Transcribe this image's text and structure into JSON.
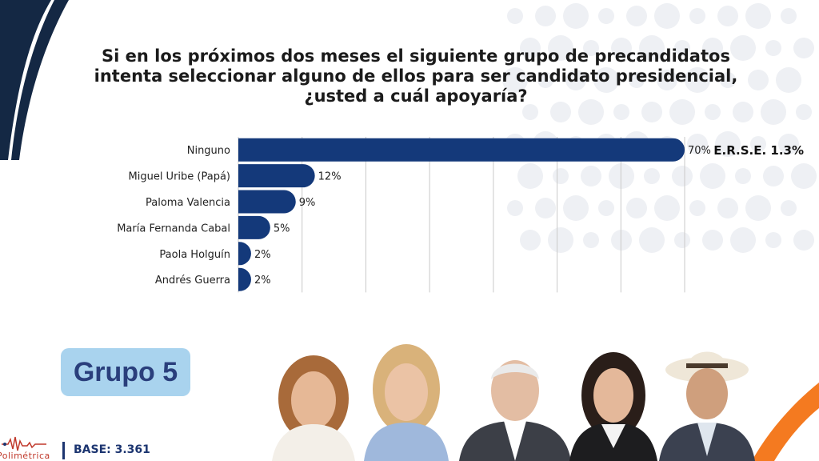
{
  "question": {
    "line1": "Si en los próximos dos meses el siguiente grupo de precandidatos",
    "line2": "intenta seleccionar alguno de ellos para ser candidato presidencial,",
    "line3": "¿usted a cuál apoyaría?"
  },
  "chart_data": {
    "type": "bar",
    "orientation": "horizontal",
    "categories": [
      "Ninguno",
      "Miguel Uribe (Papá)",
      "Paloma Valencia",
      "María Fernanda Cabal",
      "Paola Holguín",
      "Andrés Guerra"
    ],
    "values": [
      70,
      12,
      9,
      5,
      2,
      2
    ],
    "value_labels": [
      "70%",
      "12%",
      "9%",
      "5%",
      "2%",
      "2%"
    ],
    "xlim": [
      0,
      70
    ],
    "grid": true,
    "bar_color": "#14397a",
    "annotation": "E.R.S.E. 1.3%"
  },
  "group_badge": "Grupo 5",
  "logo": {
    "name": "Polimétrica"
  },
  "base_label": "BASE: 3.361",
  "colors": {
    "accent_orange": "#f47a20",
    "navy": "#14284b",
    "badge_bg": "#a9d3ee"
  }
}
